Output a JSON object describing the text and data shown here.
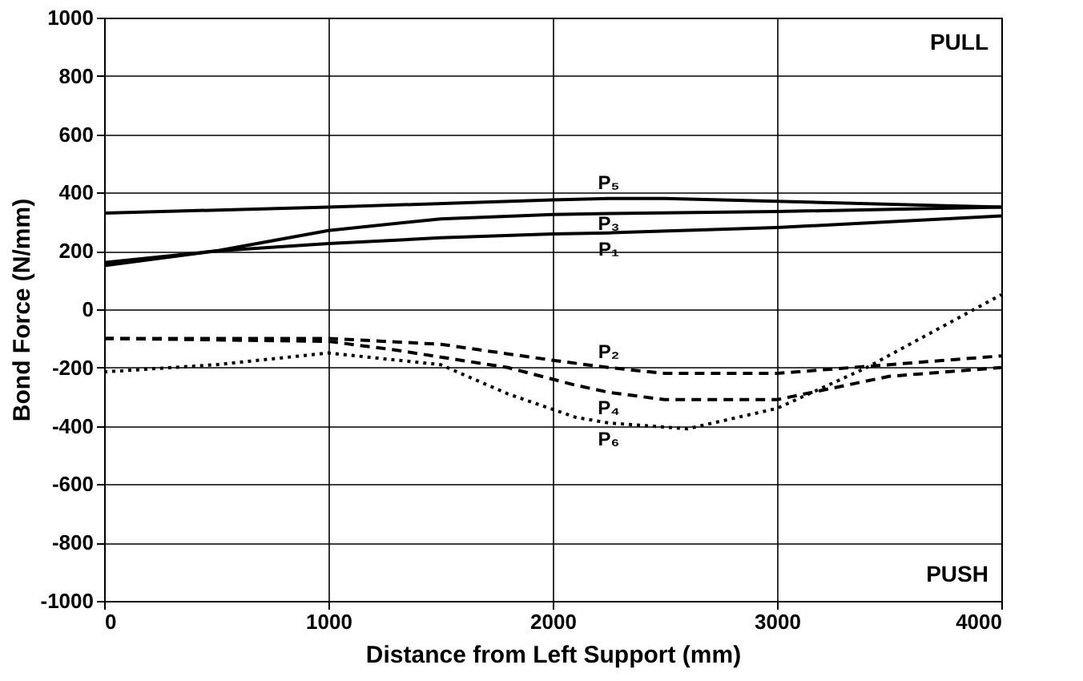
{
  "chart_data": {
    "type": "line",
    "xlabel": "Distance from Left Support (mm)",
    "ylabel": "Bond Force (N/mm)",
    "xlim": [
      0,
      4000
    ],
    "xticks": [
      0,
      1000,
      2000,
      3000,
      4000
    ],
    "ylim": [
      -1000,
      1000
    ],
    "yticks": [
      -1000,
      -800,
      -600,
      -400,
      -200,
      0,
      200,
      400,
      600,
      800,
      1000
    ],
    "grid": true,
    "marker": "none",
    "annotations": [
      "PULL",
      "PUSH"
    ],
    "series": [
      {
        "name": "P₅",
        "color": "#000000",
        "line_style": "solid",
        "x": [
          0,
          1000,
          2000,
          2250,
          2500,
          3000,
          4000
        ],
        "values": [
          330,
          350,
          375,
          380,
          380,
          370,
          350
        ]
      },
      {
        "name": "P₃",
        "color": "#000000",
        "line_style": "solid",
        "x": [
          0,
          500,
          1000,
          1500,
          2000,
          2250,
          3000,
          4000
        ],
        "values": [
          150,
          200,
          270,
          310,
          325,
          328,
          335,
          350
        ]
      },
      {
        "name": "P₁",
        "color": "#000000",
        "line_style": "solid",
        "x": [
          0,
          500,
          1000,
          1500,
          2000,
          2250,
          3000,
          4000
        ],
        "values": [
          160,
          200,
          225,
          245,
          258,
          262,
          280,
          320
        ]
      },
      {
        "name": "P₂",
        "color": "#000000",
        "line_style": "dashed",
        "x": [
          0,
          1000,
          1500,
          2000,
          2250,
          2500,
          3000,
          3500,
          4000
        ],
        "values": [
          -100,
          -100,
          -120,
          -175,
          -200,
          -220,
          -220,
          -190,
          -160
        ]
      },
      {
        "name": "P₄",
        "color": "#000000",
        "line_style": "dashed",
        "x": [
          0,
          1000,
          1300,
          1800,
          2100,
          2250,
          2500,
          3000,
          3500,
          4000
        ],
        "values": [
          -100,
          -110,
          -140,
          -200,
          -260,
          -285,
          -310,
          -310,
          -230,
          -200
        ]
      },
      {
        "name": "P₆",
        "color": "#000000",
        "line_style": "dotted",
        "x": [
          0,
          500,
          1000,
          1500,
          1800,
          2100,
          2250,
          2600,
          3000,
          3400,
          4000
        ],
        "values": [
          -215,
          -190,
          -150,
          -190,
          -290,
          -370,
          -390,
          -410,
          -340,
          -200,
          50
        ]
      }
    ]
  }
}
